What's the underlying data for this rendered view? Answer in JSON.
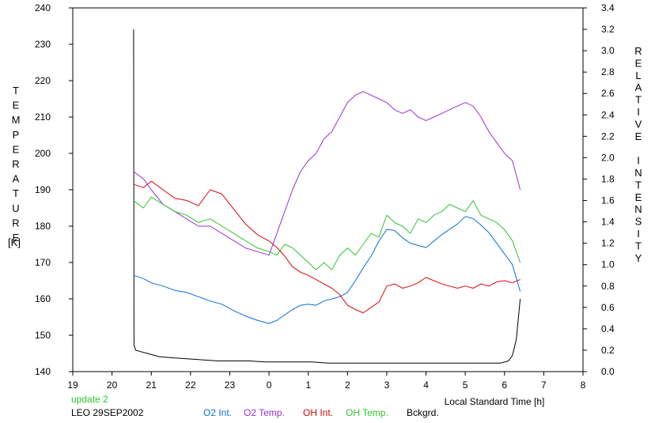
{
  "chart_data": {
    "type": "line",
    "y_left_label": "TEMPERATURE",
    "y_left_unit": "[K]",
    "y_right_label": "RELATIVE INTENSITY",
    "xlabel": "Local Standard Time [h]",
    "x_ticks": [
      "19",
      "20",
      "21",
      "22",
      "23",
      "0",
      "1",
      "2",
      "3",
      "4",
      "5",
      "6",
      "7",
      "8"
    ],
    "y_left_ticks": [
      "140",
      "150",
      "160",
      "170",
      "180",
      "190",
      "200",
      "210",
      "220",
      "230",
      "240"
    ],
    "y_right_ticks": [
      "0.0",
      "0.2",
      "0.4",
      "0.6",
      "0.8",
      "1.0",
      "1.2",
      "1.4",
      "1.6",
      "1.8",
      "2.0",
      "2.2",
      "2.4",
      "2.6",
      "2.8",
      "3.0",
      "3.2",
      "3.4"
    ],
    "xlim": [
      19,
      32
    ],
    "ylim_left": [
      140,
      240
    ],
    "ylim_right": [
      0,
      3.4
    ],
    "grid": false,
    "update_note": "update 2",
    "station_label": "LEO 29SEP2002",
    "series": [
      {
        "name": "O2 Int.",
        "axis": "right",
        "color": "#0a6fd6",
        "x": [
          20.55,
          20.8,
          21.0,
          21.3,
          21.6,
          21.9,
          22.2,
          22.5,
          22.8,
          23.1,
          23.4,
          23.7,
          24.0,
          24.2,
          24.4,
          24.6,
          24.8,
          25.0,
          25.2,
          25.4,
          25.6,
          25.8,
          26.0,
          26.2,
          26.4,
          26.6,
          26.8,
          27.0,
          27.2,
          27.4,
          27.6,
          27.8,
          28.0,
          28.2,
          28.4,
          28.6,
          28.8,
          29.0,
          29.2,
          29.4,
          29.6,
          29.8,
          30.0,
          30.2,
          30.4
        ],
        "values": [
          0.9,
          0.87,
          0.83,
          0.8,
          0.76,
          0.74,
          0.7,
          0.66,
          0.63,
          0.57,
          0.52,
          0.48,
          0.45,
          0.48,
          0.53,
          0.58,
          0.62,
          0.63,
          0.62,
          0.66,
          0.68,
          0.7,
          0.74,
          0.85,
          0.97,
          1.08,
          1.22,
          1.33,
          1.32,
          1.25,
          1.2,
          1.18,
          1.16,
          1.22,
          1.28,
          1.33,
          1.38,
          1.45,
          1.43,
          1.37,
          1.3,
          1.2,
          1.1,
          1.0,
          0.75
        ]
      },
      {
        "name": "O2 Temp.",
        "axis": "left",
        "color": "#9b30d8",
        "x": [
          20.55,
          20.8,
          21.0,
          21.3,
          21.6,
          21.9,
          22.2,
          22.5,
          22.8,
          23.1,
          23.4,
          23.7,
          24.0,
          24.2,
          24.4,
          24.6,
          24.8,
          25.0,
          25.2,
          25.4,
          25.6,
          25.8,
          26.0,
          26.2,
          26.4,
          26.6,
          26.8,
          27.0,
          27.2,
          27.4,
          27.6,
          27.8,
          28.0,
          28.2,
          28.4,
          28.6,
          28.8,
          29.0,
          29.2,
          29.4,
          29.6,
          29.8,
          30.0,
          30.2,
          30.4
        ],
        "values": [
          195,
          193,
          190,
          186,
          184,
          182,
          180,
          180,
          178,
          176,
          174,
          173,
          172,
          178,
          184,
          190,
          195,
          198,
          200,
          204,
          206,
          210,
          214,
          216,
          217,
          216,
          215,
          214,
          212,
          211,
          212,
          210,
          209,
          210,
          211,
          212,
          213,
          214,
          213,
          210,
          206,
          203,
          200,
          198,
          190
        ]
      },
      {
        "name": "OH Int.",
        "axis": "right",
        "color": "#d60a0a",
        "x": [
          20.55,
          20.8,
          21.0,
          21.3,
          21.6,
          21.9,
          22.2,
          22.5,
          22.8,
          23.1,
          23.4,
          23.7,
          24.0,
          24.2,
          24.4,
          24.6,
          24.8,
          25.0,
          25.2,
          25.4,
          25.6,
          25.8,
          26.0,
          26.2,
          26.4,
          26.6,
          26.8,
          27.0,
          27.2,
          27.4,
          27.6,
          27.8,
          28.0,
          28.2,
          28.4,
          28.6,
          28.8,
          29.0,
          29.2,
          29.4,
          29.6,
          29.8,
          30.0,
          30.2,
          30.4
        ],
        "values": [
          1.75,
          1.72,
          1.78,
          1.7,
          1.62,
          1.6,
          1.55,
          1.7,
          1.66,
          1.52,
          1.38,
          1.28,
          1.22,
          1.16,
          1.08,
          0.98,
          0.93,
          0.9,
          0.86,
          0.82,
          0.78,
          0.72,
          0.62,
          0.58,
          0.55,
          0.6,
          0.65,
          0.8,
          0.82,
          0.78,
          0.8,
          0.83,
          0.88,
          0.85,
          0.82,
          0.8,
          0.78,
          0.8,
          0.78,
          0.82,
          0.8,
          0.84,
          0.85,
          0.83,
          0.86
        ]
      },
      {
        "name": "OH Temp.",
        "axis": "left",
        "color": "#2ec42e",
        "x": [
          20.55,
          20.8,
          21.0,
          21.3,
          21.6,
          21.9,
          22.2,
          22.5,
          22.8,
          23.1,
          23.4,
          23.7,
          24.0,
          24.2,
          24.4,
          24.6,
          24.8,
          25.0,
          25.2,
          25.4,
          25.6,
          25.8,
          26.0,
          26.2,
          26.4,
          26.6,
          26.8,
          27.0,
          27.2,
          27.4,
          27.6,
          27.8,
          28.0,
          28.2,
          28.4,
          28.6,
          28.8,
          29.0,
          29.2,
          29.4,
          29.6,
          29.8,
          30.0,
          30.2,
          30.4
        ],
        "values": [
          187,
          185,
          188,
          186,
          184,
          183,
          181,
          182,
          180,
          178,
          176,
          174,
          173,
          172,
          175,
          174,
          172,
          170,
          168,
          170,
          168,
          172,
          174,
          172,
          175,
          178,
          177,
          183,
          181,
          180,
          178,
          182,
          181,
          183,
          184,
          186,
          185,
          184,
          187,
          183,
          182,
          181,
          179,
          176,
          170
        ]
      },
      {
        "name": "Bckgrd.",
        "axis": "right",
        "color": "#000000",
        "x": [
          20.55,
          20.56,
          20.6,
          20.7,
          20.9,
          21.2,
          21.5,
          21.9,
          22.3,
          22.7,
          23.1,
          23.5,
          23.9,
          24.3,
          24.7,
          25.1,
          25.5,
          25.9,
          26.3,
          26.7,
          27.1,
          27.5,
          27.9,
          28.3,
          28.7,
          29.1,
          29.5,
          29.9,
          30.1,
          30.2,
          30.3,
          30.4
        ],
        "values": [
          3.2,
          0.25,
          0.2,
          0.19,
          0.17,
          0.14,
          0.13,
          0.12,
          0.11,
          0.1,
          0.1,
          0.1,
          0.09,
          0.09,
          0.09,
          0.09,
          0.08,
          0.08,
          0.08,
          0.08,
          0.08,
          0.08,
          0.08,
          0.08,
          0.08,
          0.08,
          0.08,
          0.08,
          0.1,
          0.15,
          0.3,
          0.68
        ]
      }
    ]
  }
}
